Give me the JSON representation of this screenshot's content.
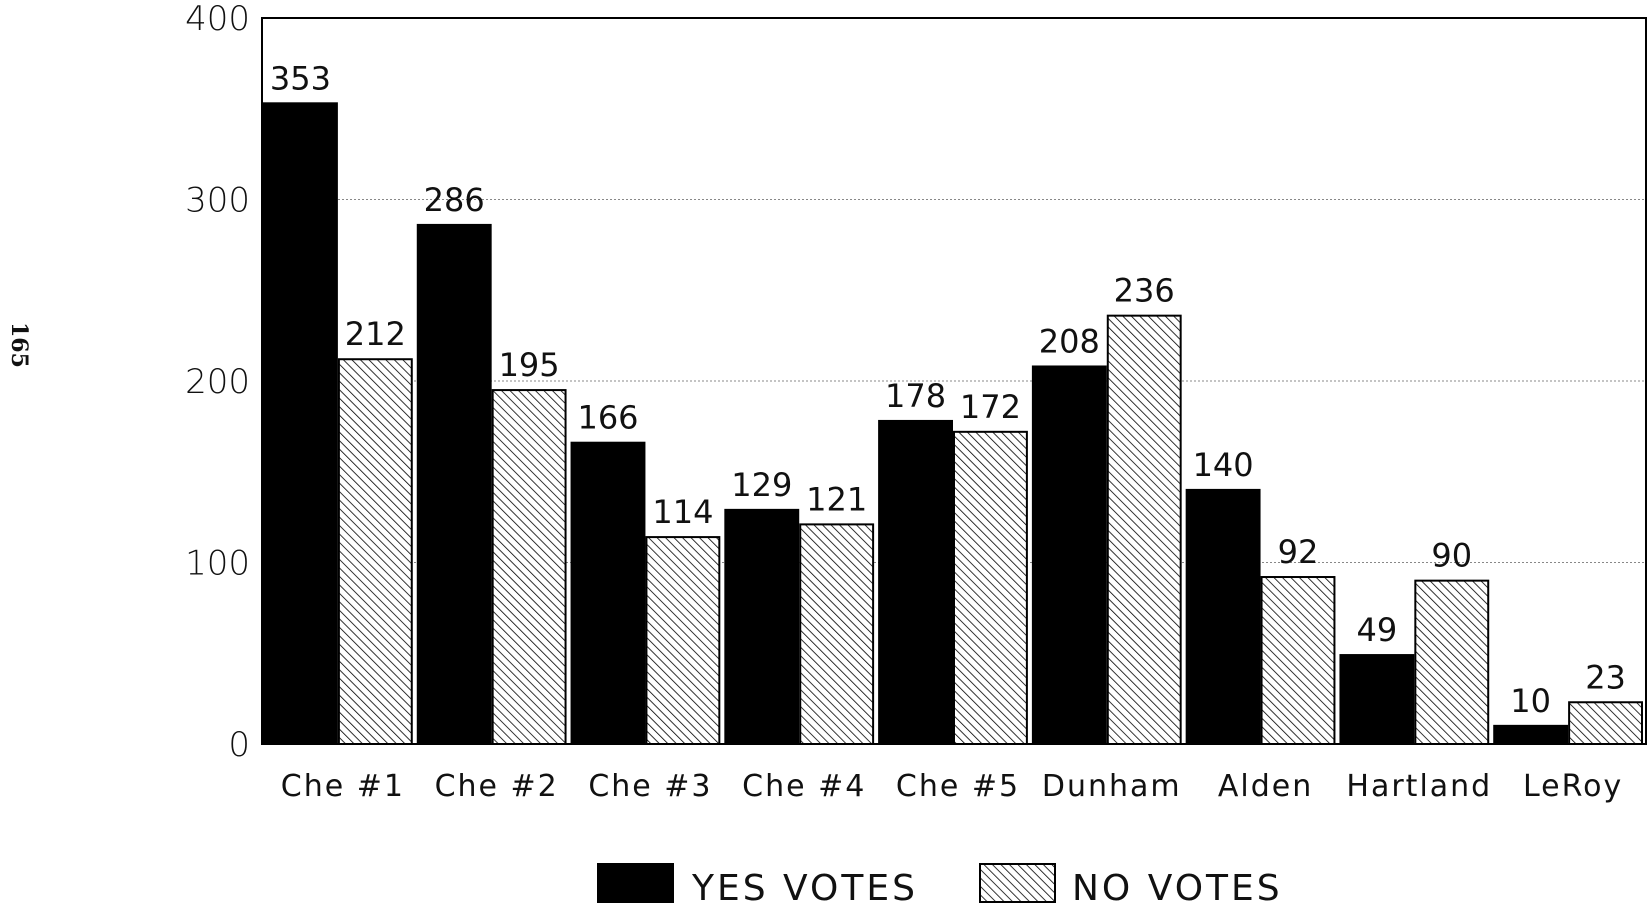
{
  "page_number": "165",
  "chart_data": {
    "type": "bar",
    "title": "",
    "xlabel": "",
    "ylabel": "",
    "categories": [
      "Che #1",
      "Che #2",
      "Che #3",
      "Che #4",
      "Che #5",
      "Dunham",
      "Alden",
      "Hartland",
      "LeRoy"
    ],
    "series": [
      {
        "name": "YES VOTES",
        "values": [
          353,
          286,
          166,
          129,
          178,
          208,
          140,
          49,
          10
        ],
        "color": "#000000",
        "pattern": "solid"
      },
      {
        "name": "NO VOTES",
        "values": [
          212,
          195,
          114,
          121,
          172,
          236,
          92,
          90,
          23
        ],
        "color": "#000000",
        "pattern": "diagonal-hatch"
      }
    ],
    "yticks": [
      0,
      100,
      200,
      300,
      400
    ],
    "ylim": [
      0,
      400
    ],
    "grid": true,
    "data_labels": true,
    "legend_position": "bottom"
  }
}
